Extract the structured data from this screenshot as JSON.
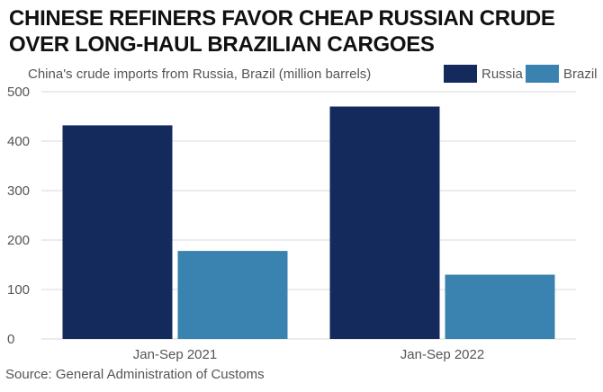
{
  "chart_data": {
    "type": "bar",
    "title_lines": [
      "CHINESE REFINERS FAVOR CHEAP RUSSIAN CRUDE",
      "OVER LONG-HAUL BRAZILIAN CARGOES"
    ],
    "subtitle": "China's crude imports from Russia, Brazil (million barrels)",
    "categories": [
      "Jan-Sep 2021",
      "Jan-Sep 2022"
    ],
    "series": [
      {
        "name": "Russia",
        "color": "#142a5c",
        "values": [
          432,
          470
        ]
      },
      {
        "name": "Brazil",
        "color": "#3a82b0",
        "values": [
          178,
          130
        ]
      }
    ],
    "ylim": [
      0,
      500
    ],
    "yticks": [
      0,
      100,
      200,
      300,
      400,
      500
    ],
    "grid": true,
    "legend_position": "top-right",
    "source": "Source: General Administration of Customs"
  }
}
